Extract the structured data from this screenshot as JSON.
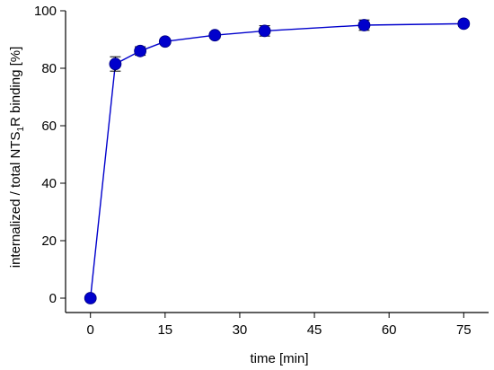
{
  "chart_data": {
    "type": "line",
    "xlabel": "time [min]",
    "ylabel": {
      "pre": "internalized / total NTS",
      "sub": "1",
      "post": "R binding [%]"
    },
    "xlim": [
      -5,
      80
    ],
    "ylim": [
      -5,
      100
    ],
    "x_ticks": [
      0,
      15,
      30,
      45,
      60,
      75
    ],
    "y_ticks": [
      0,
      20,
      40,
      60,
      80,
      100
    ],
    "grid": false,
    "series": [
      {
        "color": "#0000cc",
        "points": [
          {
            "x": 0,
            "y": 0,
            "err": 0
          },
          {
            "x": 5,
            "y": 81.5,
            "err": 2.5
          },
          {
            "x": 10,
            "y": 86,
            "err": 1.5
          },
          {
            "x": 15,
            "y": 89.3,
            "err": 0.8
          },
          {
            "x": 25,
            "y": 91.5,
            "err": 1.0
          },
          {
            "x": 35,
            "y": 93,
            "err": 1.8
          },
          {
            "x": 55,
            "y": 95,
            "err": 1.8
          },
          {
            "x": 75,
            "y": 95.5,
            "err": 1.0
          }
        ]
      }
    ]
  }
}
